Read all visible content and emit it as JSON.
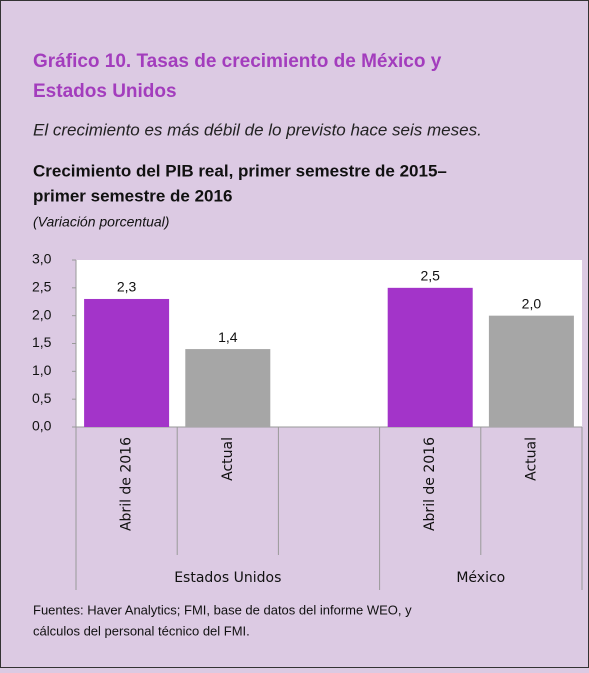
{
  "chart_data": {
    "type": "grouped-bar",
    "title": [
      "Gráfico 10. Tasas de crecimiento de México y",
      "Estados Unidos"
    ],
    "subtitle": "El crecimiento es más débil de lo previsto hace seis meses.",
    "chart_title": [
      "Crecimiento del PIB real, primer semestre de 2015–",
      "primer semestre de 2016"
    ],
    "unit": "(Variación porcentual)",
    "ylim": [
      0,
      3
    ],
    "yticks": [
      {
        "value": 0,
        "label": "0,0"
      },
      {
        "value": 0.5,
        "label": "0,5"
      },
      {
        "value": 1,
        "label": "1,0"
      },
      {
        "value": 1.5,
        "label": "1,5"
      },
      {
        "value": 2,
        "label": "2,0"
      },
      {
        "value": 2.5,
        "label": "2,5"
      },
      {
        "value": 3,
        "label": "3,0"
      }
    ],
    "groups": [
      {
        "name": "Estados Unidos",
        "categories": [
          "Abril de 2016",
          "Actual",
          null
        ],
        "values": [
          2.3,
          1.4,
          null
        ],
        "value_labels": [
          "2,3",
          "1,4",
          null
        ],
        "colors": [
          "#a334c9",
          "#a6a6a6",
          null
        ]
      },
      {
        "name": "México",
        "categories": [
          "Abril de 2016",
          "Actual"
        ],
        "values": [
          2.5,
          2.0
        ],
        "value_labels": [
          "2,5",
          "2,0"
        ],
        "colors": [
          "#a334c9",
          "#a6a6a6"
        ]
      }
    ],
    "source": [
      "Fuentes: Haver Analytics; FMI, base de datos del informe WEO, y",
      "cálculos del personal técnico del FMI."
    ]
  }
}
